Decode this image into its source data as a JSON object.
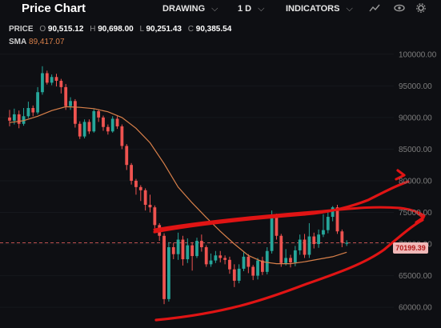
{
  "header": {
    "title": "Price Chart",
    "drawing_label": "DRAWING",
    "interval_label": "1 D",
    "indicators_label": "INDICATORS",
    "chevron": "⌵"
  },
  "legend": {
    "price_label": "PRICE",
    "open_key": "O",
    "open": "90,515.12",
    "high_key": "H",
    "high": "90,698.00",
    "low_key": "L",
    "low": "90,251.43",
    "close_key": "C",
    "close": "90,385.54",
    "sma_label": "SMA",
    "sma": "89,417.07"
  },
  "price_tag": "70199.39",
  "icons": [
    "line-chart-icon",
    "eye-icon",
    "settings-icon"
  ],
  "colors": {
    "background": "#0e0f13",
    "up": "#26a69a",
    "down": "#ef5350",
    "sma": "#d9804a",
    "annotation": "#e01414"
  },
  "chart_data": {
    "type": "candlestick",
    "y_ticks": [
      "100000.00",
      "95000.00",
      "90000.00",
      "85000.00",
      "80000.00",
      "75000.00",
      "70000.00",
      "65000.00",
      "60000.00"
    ],
    "ylim": [
      58500,
      102500
    ],
    "current_price": 70199.39,
    "candles": [
      [
        90000,
        89500,
        91200,
        88600
      ],
      [
        89500,
        90500,
        91400,
        88900
      ],
      [
        90500,
        89000,
        91100,
        88300
      ],
      [
        89000,
        90200,
        91500,
        88700
      ],
      [
        90200,
        91500,
        92500,
        89900
      ],
      [
        91500,
        90800,
        91900,
        90200
      ],
      [
        90800,
        94000,
        94800,
        90500
      ],
      [
        94000,
        97000,
        98100,
        93600
      ],
      [
        97000,
        95500,
        97400,
        95200
      ],
      [
        95500,
        96400,
        96800,
        95100
      ],
      [
        96400,
        95800,
        96900,
        94900
      ],
      [
        95800,
        94800,
        96100,
        93800
      ],
      [
        94800,
        91800,
        95300,
        91200
      ],
      [
        91800,
        92600,
        93200,
        91200
      ],
      [
        92600,
        89000,
        92900,
        88400
      ],
      [
        89000,
        87000,
        89400,
        86600
      ],
      [
        87000,
        89300,
        89700,
        86700
      ],
      [
        89300,
        87800,
        89700,
        87400
      ],
      [
        87800,
        91000,
        91300,
        87600
      ],
      [
        91000,
        90000,
        91300,
        89300
      ],
      [
        90000,
        88500,
        90300,
        87900
      ],
      [
        88500,
        87800,
        88900,
        87300
      ],
      [
        87800,
        89800,
        90200,
        87600
      ],
      [
        89800,
        88600,
        90200,
        88200
      ],
      [
        88600,
        85500,
        88900,
        85000
      ],
      [
        85500,
        82500,
        85800,
        81700
      ],
      [
        82500,
        80000,
        82800,
        79400
      ],
      [
        80000,
        79000,
        80300,
        77800
      ],
      [
        79000,
        78500,
        79300,
        76800
      ],
      [
        78500,
        76200,
        78800,
        75300
      ],
      [
        76200,
        75800,
        77800,
        75000
      ],
      [
        75800,
        73000,
        76100,
        72500
      ],
      [
        73000,
        71300,
        73300,
        70500
      ],
      [
        71300,
        61300,
        71700,
        60500
      ],
      [
        61300,
        69500,
        70300,
        60900
      ],
      [
        69500,
        68400,
        70200,
        67600
      ],
      [
        68400,
        70700,
        71800,
        67500
      ],
      [
        70700,
        67600,
        71300,
        66600
      ],
      [
        67600,
        69800,
        70900,
        67000
      ],
      [
        69800,
        68100,
        70300,
        65800
      ],
      [
        68100,
        70500,
        71000,
        67800
      ],
      [
        70500,
        69500,
        71500,
        68800
      ],
      [
        69500,
        66800,
        69800,
        66400
      ],
      [
        66800,
        67400,
        68500,
        66400
      ],
      [
        67400,
        68200,
        68900,
        67000
      ],
      [
        68200,
        67800,
        68900,
        67100
      ],
      [
        67800,
        67500,
        68200,
        66800
      ],
      [
        67500,
        66000,
        68000,
        65300
      ],
      [
        66000,
        64200,
        66800,
        63200
      ],
      [
        64200,
        66100,
        66800,
        63800
      ],
      [
        66100,
        68000,
        68700,
        65700
      ],
      [
        68000,
        66400,
        68400,
        65400
      ],
      [
        66400,
        65000,
        66700,
        64300
      ],
      [
        65000,
        67400,
        67800,
        64400
      ],
      [
        67400,
        65600,
        68000,
        65100
      ],
      [
        65600,
        68900,
        69500,
        65200
      ],
      [
        68900,
        74300,
        75300,
        68500
      ],
      [
        74300,
        71300,
        74800,
        70700
      ],
      [
        71300,
        67000,
        71600,
        66400
      ],
      [
        67000,
        67800,
        69200,
        66600
      ],
      [
        67800,
        67100,
        68300,
        66300
      ],
      [
        67100,
        69000,
        69700,
        66500
      ],
      [
        69000,
        70700,
        71500,
        68300
      ],
      [
        70700,
        68300,
        71600,
        67800
      ],
      [
        68300,
        71200,
        73300,
        67800
      ],
      [
        71200,
        70000,
        71800,
        69300
      ],
      [
        70000,
        71500,
        72300,
        69400
      ],
      [
        71500,
        72200,
        74700,
        71100
      ],
      [
        72200,
        74300,
        75300,
        71700
      ],
      [
        74300,
        75800,
        76000,
        73600
      ],
      [
        75800,
        72000,
        76200,
        71600
      ],
      [
        72000,
        70200,
        72300,
        69500
      ],
      [
        70200,
        70200,
        70600,
        69700
      ]
    ],
    "sma": [
      [
        0,
        89200
      ],
      [
        3,
        89500
      ],
      [
        6,
        90200
      ],
      [
        9,
        91100
      ],
      [
        12,
        91700
      ],
      [
        15,
        91600
      ],
      [
        18,
        91400
      ],
      [
        21,
        90900
      ],
      [
        24,
        90000
      ],
      [
        27,
        88300
      ],
      [
        30,
        86000
      ],
      [
        33,
        82700
      ],
      [
        36,
        79000
      ],
      [
        39,
        76500
      ],
      [
        42,
        74200
      ],
      [
        45,
        72000
      ],
      [
        48,
        70000
      ],
      [
        51,
        68200
      ],
      [
        54,
        67200
      ],
      [
        57,
        66900
      ],
      [
        60,
        66900
      ],
      [
        63,
        67200
      ],
      [
        66,
        67600
      ],
      [
        69,
        68000
      ],
      [
        72,
        68700
      ]
    ]
  }
}
